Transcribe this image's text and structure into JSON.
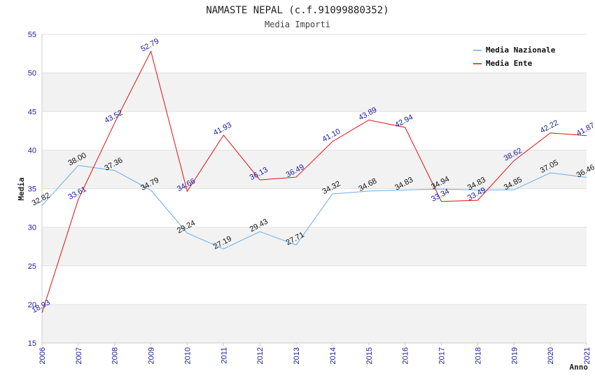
{
  "chart_data": {
    "type": "line",
    "title": "NAMASTE NEPAL (c.f.91099880352)",
    "subtitle": "Media Importi",
    "xlabel": "Anno",
    "ylabel": "Media",
    "ylim": [
      15,
      55
    ],
    "yticks": [
      "15",
      "20",
      "25",
      "30",
      "35",
      "40",
      "45",
      "50",
      "55"
    ],
    "categories": [
      "2006",
      "2007",
      "2008",
      "2009",
      "2010",
      "2011",
      "2012",
      "2013",
      "2014",
      "2015",
      "2016",
      "2017",
      "2018",
      "2019",
      "2020",
      "2021"
    ],
    "series": [
      {
        "name": "Media Nazionale",
        "color": "#6aaee8",
        "values": [
          32.82,
          38.0,
          37.36,
          34.79,
          29.24,
          27.19,
          29.43,
          27.71,
          34.32,
          34.68,
          34.83,
          34.94,
          34.83,
          34.85,
          37.05,
          36.46
        ],
        "labels": [
          "32.82",
          "38.00",
          "37.36",
          "34.79",
          "29.24",
          "27.19",
          "29.43",
          "27.71",
          "34.32",
          "34.68",
          "34.83",
          "34.94",
          "34.83",
          "34.85",
          "37.05",
          "36.46"
        ]
      },
      {
        "name": "Media Ente",
        "color": "#e01010",
        "values": [
          18.93,
          33.61,
          43.52,
          52.79,
          34.66,
          41.93,
          36.13,
          36.49,
          41.1,
          43.89,
          42.94,
          33.34,
          33.49,
          38.62,
          42.22,
          41.87
        ],
        "labels": [
          "18.93",
          "33.61",
          "43.52",
          "52.79",
          "34.66",
          "41.93",
          "36.13",
          "36.49",
          "41.10",
          "43.89",
          "42.94",
          "33.34",
          "33.49",
          "38.62",
          "42.22",
          "41.87"
        ]
      }
    ],
    "grid": true,
    "legend_position": "top-right"
  }
}
